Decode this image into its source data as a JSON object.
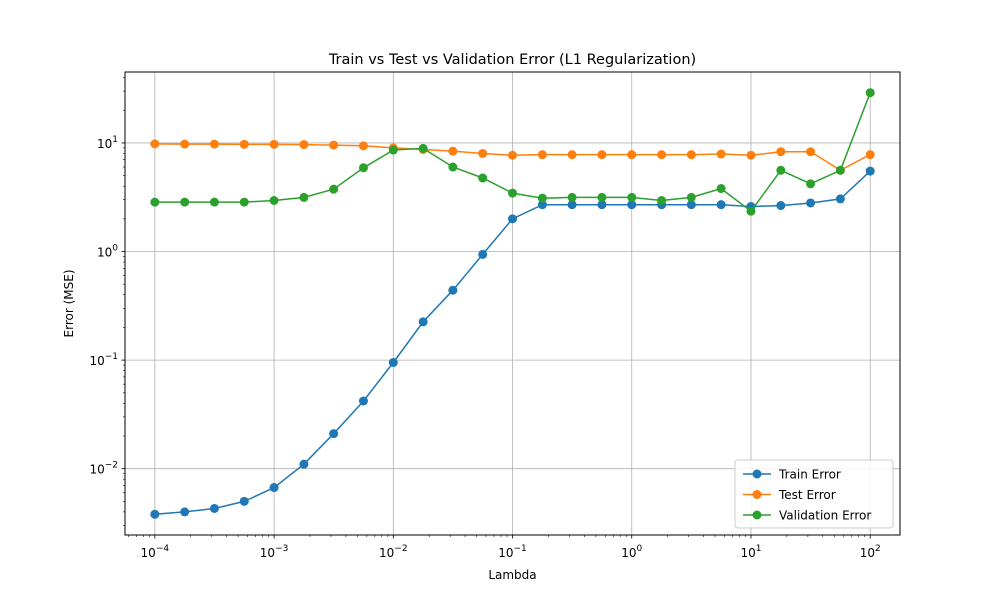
{
  "chart_data": {
    "type": "line",
    "title": "Train vs Test vs Validation Error (L1 Regularization)",
    "xlabel": "Lambda",
    "ylabel": "Error (MSE)",
    "xscale": "log",
    "yscale": "log",
    "xlim": [
      5.62e-05,
      177.8
    ],
    "ylim": [
      0.00245,
      45.0
    ],
    "grid": true,
    "legend_position": "lower right",
    "x_ticks": [
      {
        "value": 0.0001,
        "base": "10",
        "exp": "−4"
      },
      {
        "value": 0.001,
        "base": "10",
        "exp": "−3"
      },
      {
        "value": 0.01,
        "base": "10",
        "exp": "−2"
      },
      {
        "value": 0.1,
        "base": "10",
        "exp": "−1"
      },
      {
        "value": 1,
        "base": "10",
        "exp": "0"
      },
      {
        "value": 10,
        "base": "10",
        "exp": "1"
      },
      {
        "value": 100,
        "base": "10",
        "exp": "2"
      }
    ],
    "y_ticks": [
      {
        "value": 0.01,
        "base": "10",
        "exp": "−2"
      },
      {
        "value": 0.1,
        "base": "10",
        "exp": "−1"
      },
      {
        "value": 1,
        "base": "10",
        "exp": "0"
      },
      {
        "value": 10,
        "base": "10",
        "exp": "1"
      }
    ],
    "x": [
      0.0001,
      0.000178,
      0.000316,
      0.000562,
      0.001,
      0.00178,
      0.00316,
      0.00562,
      0.01,
      0.0178,
      0.0316,
      0.0562,
      0.1,
      0.178,
      0.316,
      0.562,
      1,
      1.78,
      3.16,
      5.62,
      10,
      17.8,
      31.6,
      56.2,
      100
    ],
    "series": [
      {
        "name": "Train Error",
        "color": "#1f77b4",
        "values": [
          0.0038,
          0.004,
          0.0043,
          0.005,
          0.0067,
          0.011,
          0.021,
          0.042,
          0.095,
          0.225,
          0.44,
          0.94,
          2.0,
          2.7,
          2.7,
          2.7,
          2.7,
          2.7,
          2.7,
          2.7,
          2.6,
          2.65,
          2.8,
          3.05,
          5.5
        ]
      },
      {
        "name": "Test Error",
        "color": "#ff7f0e",
        "values": [
          9.8,
          9.75,
          9.75,
          9.7,
          9.7,
          9.65,
          9.55,
          9.4,
          9.0,
          8.7,
          8.4,
          8.0,
          7.7,
          7.8,
          7.8,
          7.8,
          7.8,
          7.8,
          7.8,
          7.9,
          7.7,
          8.3,
          8.3,
          5.6,
          7.8
        ]
      },
      {
        "name": "Validation Error",
        "color": "#2ca02c",
        "values": [
          2.85,
          2.85,
          2.85,
          2.85,
          2.95,
          3.15,
          3.75,
          5.9,
          8.6,
          8.9,
          6.0,
          4.75,
          3.45,
          3.1,
          3.15,
          3.15,
          3.15,
          2.95,
          3.15,
          3.8,
          2.35,
          5.6,
          4.2,
          5.6,
          29.0
        ]
      }
    ]
  }
}
